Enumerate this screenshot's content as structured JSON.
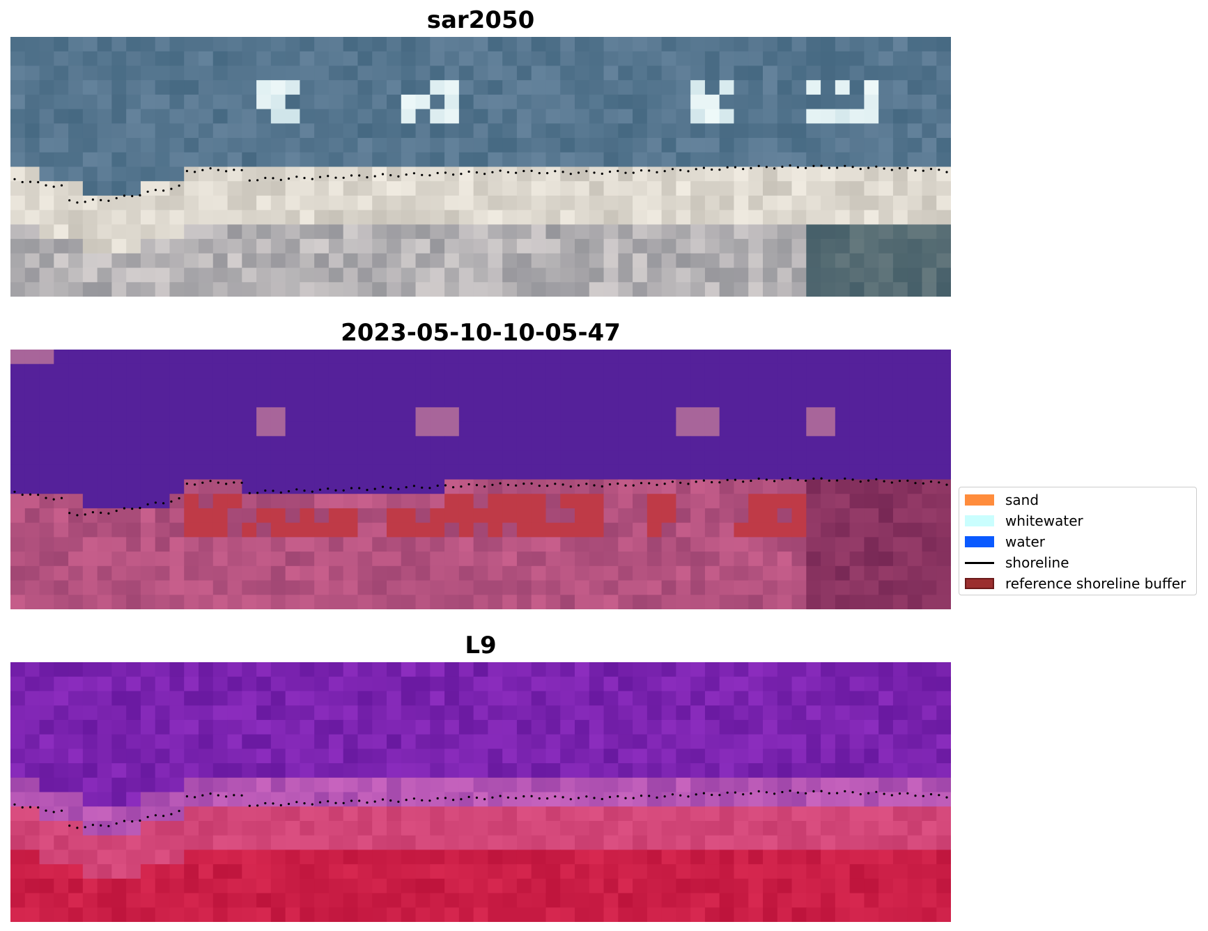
{
  "panels": [
    {
      "title": "sar2050",
      "scene": "rgb"
    },
    {
      "title": "2023-05-10-10-05-47",
      "scene": "classified"
    },
    {
      "title": "L9",
      "scene": "index"
    }
  ],
  "legend": {
    "items": [
      {
        "label": "sand",
        "color": "#ff8c3c",
        "kind": "patch"
      },
      {
        "label": "whitewater",
        "color": "#cafefe",
        "kind": "patch"
      },
      {
        "label": "water",
        "color": "#0a5aff",
        "kind": "patch"
      },
      {
        "label": "shoreline",
        "color": "#000000",
        "kind": "line"
      },
      {
        "label": "reference shoreline buffer",
        "color": "#9b2f2f",
        "kind": "patch"
      }
    ]
  },
  "colors": {
    "water_class": "#55219a",
    "buffer_red": "#bf3a47",
    "land_pink": "#b24e82",
    "shoreline_dots": "#000000"
  }
}
